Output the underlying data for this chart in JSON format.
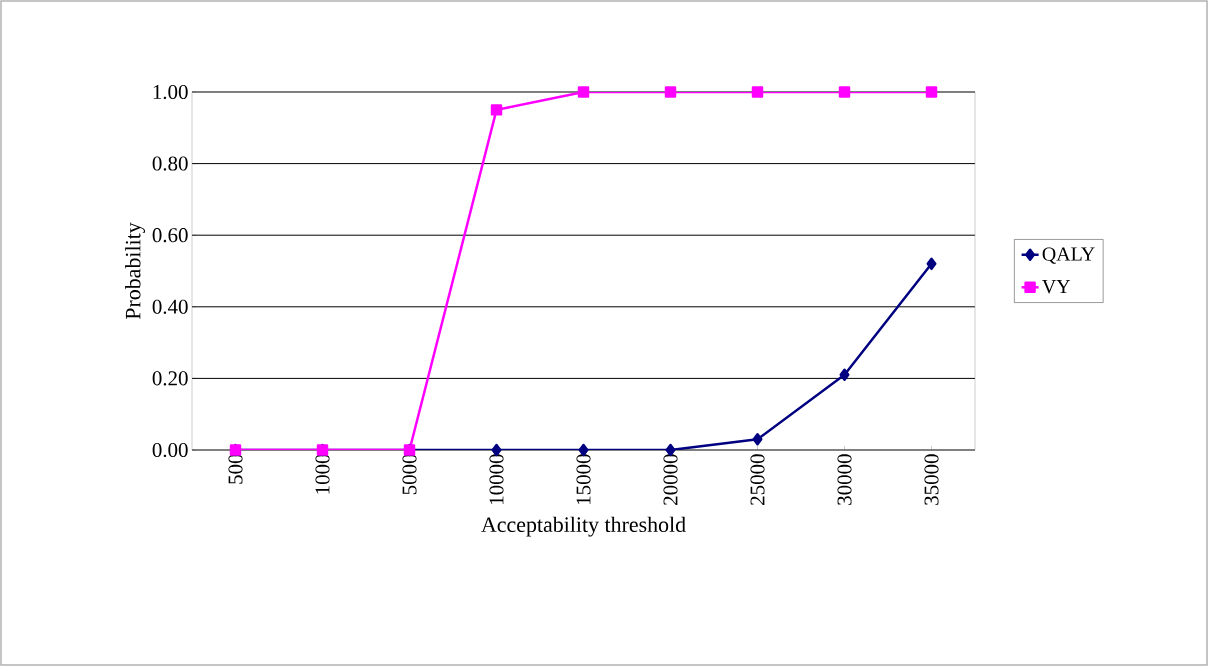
{
  "chart_data": {
    "type": "line",
    "xlabel": "Acceptability threshold",
    "ylabel": "Probability",
    "categories": [
      "500",
      "1000",
      "5000",
      "10000",
      "15000",
      "20000",
      "25000",
      "30000",
      "35000"
    ],
    "series": [
      {
        "name": "QALY",
        "color": "#000080",
        "marker": "diamond",
        "values": [
          0,
          0,
          0,
          0,
          0,
          0,
          0.03,
          0.21,
          0.52
        ]
      },
      {
        "name": "VY",
        "color": "#ff00ff",
        "marker": "square",
        "values": [
          0,
          0,
          0,
          0.95,
          1,
          1,
          1,
          1,
          1
        ]
      }
    ],
    "ylim": [
      0,
      1
    ],
    "yticks": [
      {
        "value": 0,
        "label": "0.00"
      },
      {
        "value": 0.2,
        "label": "0.20"
      },
      {
        "value": 0.4,
        "label": "0.40"
      },
      {
        "value": 0.6,
        "label": "0.60"
      },
      {
        "value": 0.8,
        "label": "0.80"
      },
      {
        "value": 1,
        "label": "1.00"
      }
    ],
    "grid": "y",
    "legend": "right",
    "line_style": "solid"
  }
}
